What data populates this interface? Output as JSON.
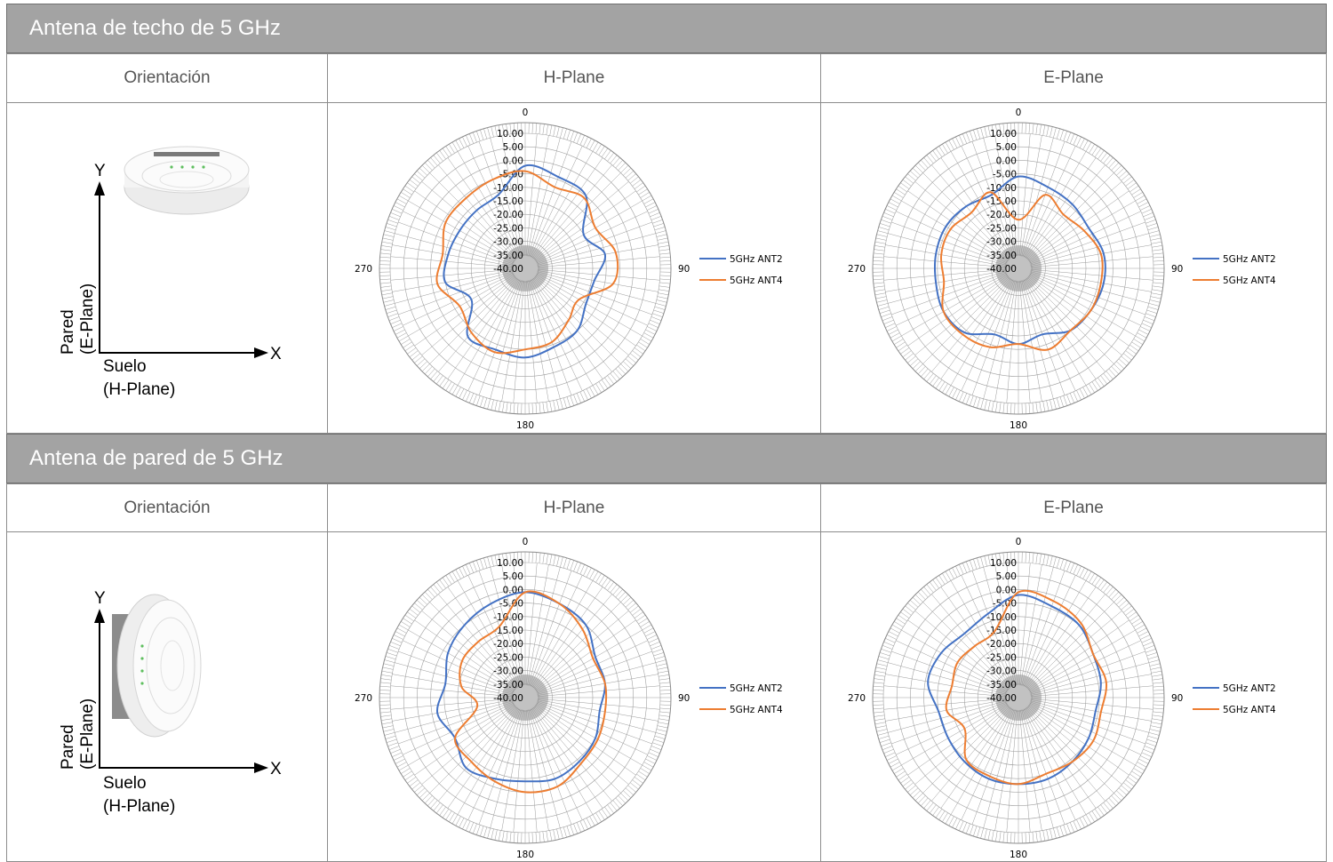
{
  "colors": {
    "ant2": "#4472c4",
    "ant4": "#ed7d31",
    "header_bg": "#a3a3a3",
    "grid": "#9a9a9a"
  },
  "columns": {
    "orientation": "Orientación",
    "hplane": "H-Plane",
    "eplane": "E-Plane"
  },
  "orientation_labels": {
    "y": "Y",
    "x": "X",
    "wall_1": "Pared",
    "wall_2": "(E-Plane)",
    "floor_1": "Suelo",
    "floor_2": "(H-Plane)"
  },
  "sections": [
    {
      "title": "Antena de techo de 5 GHz",
      "device_icon": "ceiling-access-point-icon"
    },
    {
      "title": "Antena de pared de 5 GHz",
      "device_icon": "wall-access-point-icon"
    }
  ],
  "chart_data": [
    {
      "type": "polar-line",
      "section": "Antena de techo de 5 GHz",
      "plane": "H-Plane",
      "angle_ticks": [
        "0",
        "90",
        "180",
        "270"
      ],
      "radial_ticks": [
        "10.00",
        "5.00",
        "0.00",
        "-5.00",
        "-10.00",
        "-15.00",
        "-20.00",
        "-25.00",
        "-30.00",
        "-35.00",
        "-40.00"
      ],
      "rlim": [
        -40,
        10
      ],
      "angles": [
        0,
        20,
        40,
        60,
        80,
        100,
        120,
        140,
        160,
        180,
        200,
        220,
        240,
        260,
        280,
        300,
        320,
        340
      ],
      "series": [
        {
          "name": "5GHz ANT2",
          "values": [
            -2,
            -4,
            -5,
            -15,
            -10,
            -14,
            -14,
            -10,
            -9,
            -7,
            -8,
            -7,
            -17,
            -10,
            -11,
            -12,
            -12,
            -11
          ]
        },
        {
          "name": "5GHz ANT4",
          "values": [
            -4,
            -8,
            -6,
            -10,
            -6,
            -7,
            -17,
            -15,
            -11,
            -10,
            -7,
            -9,
            -12,
            -7,
            -9,
            -6,
            -6,
            -5
          ]
        }
      ]
    },
    {
      "type": "polar-line",
      "section": "Antena de techo de 5 GHz",
      "plane": "E-Plane",
      "angle_ticks": [
        "0",
        "90",
        "180",
        "270"
      ],
      "radial_ticks": [
        "10.00",
        "5.00",
        "0.00",
        "-5.00",
        "-10.00",
        "-15.00",
        "-20.00",
        "-25.00",
        "-30.00",
        "-35.00",
        "-40.00"
      ],
      "rlim": [
        -40,
        10
      ],
      "angles": [
        0,
        20,
        40,
        60,
        80,
        100,
        120,
        140,
        160,
        180,
        200,
        220,
        240,
        260,
        280,
        300,
        320,
        340
      ],
      "series": [
        {
          "name": "5GHz ANT2",
          "values": [
            -6,
            -8,
            -9,
            -10,
            -8,
            -8,
            -9,
            -10,
            -14,
            -12,
            -14,
            -9,
            -8,
            -9,
            -9,
            -9,
            -10,
            -11
          ]
        },
        {
          "name": "5GHz ANT4",
          "values": [
            -22,
            -11,
            -14,
            -12,
            -9,
            -9,
            -9,
            -10,
            -8,
            -12,
            -9,
            -8,
            -8,
            -12,
            -11,
            -11,
            -13,
            -10
          ]
        }
      ]
    },
    {
      "type": "polar-line",
      "section": "Antena de pared de 5 GHz",
      "plane": "H-Plane",
      "angle_ticks": [
        "0",
        "90",
        "180",
        "270"
      ],
      "radial_ticks": [
        "10.00",
        "5.00",
        "0.00",
        "-5.00",
        "-10.00",
        "-15.00",
        "-20.00",
        "-25.00",
        "-30.00",
        "-35.00",
        "-40.00"
      ],
      "rlim": [
        -40,
        10
      ],
      "angles": [
        0,
        20,
        40,
        60,
        80,
        100,
        120,
        140,
        160,
        180,
        200,
        220,
        240,
        260,
        280,
        300,
        320,
        340
      ],
      "series": [
        {
          "name": "5GHz ANT2",
          "values": [
            -1,
            -3,
            -5,
            -10,
            -10,
            -12,
            -10,
            -9,
            -8,
            -9,
            -8,
            -6,
            -10,
            -7,
            -10,
            -7,
            -5,
            -3
          ]
        },
        {
          "name": "5GHz ANT4",
          "values": [
            -1,
            -3,
            -7,
            -11,
            -10,
            -10,
            -9,
            -8,
            -5,
            -5,
            -7,
            -9,
            -10,
            -22,
            -16,
            -13,
            -13,
            -12
          ]
        }
      ]
    },
    {
      "type": "polar-line",
      "section": "Antena de pared de 5 GHz",
      "plane": "E-Plane",
      "angle_ticks": [
        "0",
        "90",
        "180",
        "270"
      ],
      "radial_ticks": [
        "10.00",
        "5.00",
        "0.00",
        "-5.00",
        "-10.00",
        "-15.00",
        "-20.00",
        "-25.00",
        "-30.00",
        "-35.00",
        "-40.00"
      ],
      "rlim": [
        -40,
        10
      ],
      "angles": [
        0,
        20,
        40,
        60,
        80,
        100,
        120,
        140,
        160,
        180,
        200,
        220,
        240,
        260,
        280,
        300,
        320,
        340
      ],
      "series": [
        {
          "name": "5GHz ANT2",
          "values": [
            -2,
            -4,
            -5,
            -8,
            -9,
            -11,
            -10,
            -9,
            -8,
            -8,
            -8,
            -9,
            -10,
            -10,
            -6,
            -7,
            -9,
            -7
          ]
        },
        {
          "name": "5GHz ANT4",
          "values": [
            -1,
            -2,
            -4,
            -8,
            -7,
            -9,
            -8,
            -9,
            -10,
            -8,
            -9,
            -10,
            -17,
            -13,
            -15,
            -14,
            -15,
            -14
          ]
        }
      ]
    }
  ]
}
